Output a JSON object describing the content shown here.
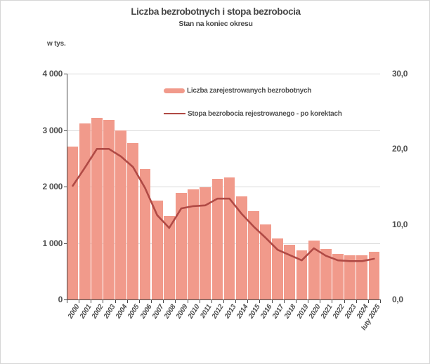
{
  "chart": {
    "title": "Liczba bezrobotnych i stopa bezrobocia",
    "subtitle": "Stan na koniec okresu",
    "legend": [
      {
        "label": "Liczba zarejestrowanych bezrobotnych",
        "type": "bar"
      },
      {
        "label": "Stopa bezrobocia rejestrowanego - po korektach",
        "type": "line"
      }
    ]
  },
  "chart_data": {
    "type": "combo",
    "subtypes": [
      "bar",
      "line"
    ],
    "categories": [
      "2000",
      "2001",
      "2002",
      "2003",
      "2004",
      "2005",
      "2006",
      "2007",
      "2008",
      "2009",
      "2010",
      "2011",
      "2012",
      "2013",
      "2014",
      "2015",
      "2016",
      "2017",
      "2018",
      "2019",
      "2020",
      "2021",
      "2022",
      "2023",
      "2024",
      "luty 2025"
    ],
    "series": [
      {
        "name": "Liczba zarejestrowanych bezrobotnych",
        "type": "bar",
        "axis": "left",
        "unit": "tys.",
        "color": "#f19a8b",
        "values": [
          2703,
          3115,
          3217,
          3176,
          3000,
          2773,
          2309,
          1747,
          1474,
          1893,
          1955,
          1983,
          2137,
          2158,
          1825,
          1563,
          1335,
          1082,
          969,
          866,
          1046,
          895,
          812,
          788,
          787,
          846
        ]
      },
      {
        "name": "Stopa bezrobocia rejestrowanego - po korektach",
        "type": "line",
        "axis": "right",
        "unit": "%",
        "color": "#b04a45",
        "values": [
          15.1,
          17.5,
          20.0,
          20.0,
          19.0,
          17.6,
          14.8,
          11.2,
          9.5,
          12.1,
          12.4,
          12.5,
          13.4,
          13.4,
          11.4,
          9.7,
          8.2,
          6.6,
          5.9,
          5.2,
          6.8,
          5.8,
          5.2,
          5.1,
          5.1,
          5.4
        ]
      }
    ],
    "left_axis": {
      "label": "w tys.",
      "min": 0,
      "max": 4000,
      "tick_values": [
        4000,
        3000,
        2000,
        1000,
        0
      ],
      "tick_labels": [
        "4 000",
        "3 000",
        "2 000",
        "1 000",
        "0"
      ]
    },
    "right_axis": {
      "min": 0,
      "max": 30,
      "tick_values": [
        30,
        20,
        10,
        0
      ],
      "tick_labels": [
        "30,0",
        "20,0",
        "10,0",
        "0,0"
      ]
    },
    "grid": "horizontal",
    "legend_position": "inside-top",
    "colors": {
      "bar_fill": "#f19a8b",
      "line_stroke": "#b04a45",
      "gridline": "#d9d9d9",
      "axis": "#474747",
      "text": "#4f4f4f"
    }
  }
}
